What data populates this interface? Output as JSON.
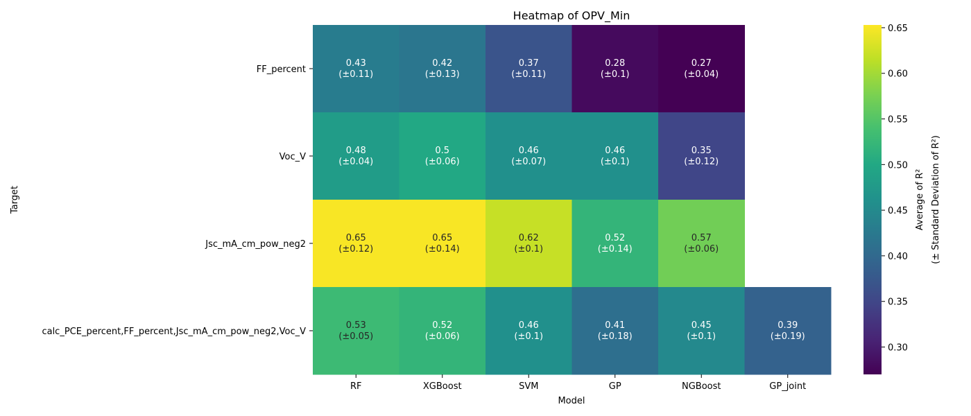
{
  "chart_data": {
    "type": "heatmap",
    "title": "Heatmap of OPV_Min",
    "xlabel": "Model",
    "ylabel": "Target",
    "x_categories": [
      "RF",
      "XGBoost",
      "SVM",
      "GP",
      "NGBoost",
      "GP_joint"
    ],
    "y_categories": [
      "FF_percent",
      "Voc_V",
      "Jsc_mA_cm_pow_neg2",
      "calc_PCE_percent,FF_percent,Jsc_mA_cm_pow_neg2,Voc_V"
    ],
    "cells": [
      [
        {
          "mean": "0.43",
          "std": "(±0.11)"
        },
        {
          "mean": "0.42",
          "std": "(±0.13)"
        },
        {
          "mean": "0.37",
          "std": "(±0.11)"
        },
        {
          "mean": "0.28",
          "std": "(±0.1)"
        },
        {
          "mean": "0.27",
          "std": "(±0.04)"
        },
        null
      ],
      [
        {
          "mean": "0.48",
          "std": "(±0.04)"
        },
        {
          "mean": "0.5",
          "std": "(±0.06)"
        },
        {
          "mean": "0.46",
          "std": "(±0.07)"
        },
        {
          "mean": "0.46",
          "std": "(±0.1)"
        },
        {
          "mean": "0.35",
          "std": "(±0.12)"
        },
        null
      ],
      [
        {
          "mean": "0.65",
          "std": "(±0.12)"
        },
        {
          "mean": "0.65",
          "std": "(±0.14)"
        },
        {
          "mean": "0.62",
          "std": "(±0.1)"
        },
        {
          "mean": "0.52",
          "std": "(±0.14)"
        },
        {
          "mean": "0.57",
          "std": "(±0.06)"
        },
        null
      ],
      [
        {
          "mean": "0.53",
          "std": "(±0.05)"
        },
        {
          "mean": "0.52",
          "std": "(±0.06)"
        },
        {
          "mean": "0.46",
          "std": "(±0.1)"
        },
        {
          "mean": "0.41",
          "std": "(±0.18)"
        },
        {
          "mean": "0.45",
          "std": "(±0.1)"
        },
        {
          "mean": "0.39",
          "std": "(±0.19)"
        }
      ]
    ],
    "colorbar": {
      "colormap": "viridis",
      "range": [
        0.27,
        0.653
      ],
      "ticks": [
        "0.30",
        "0.35",
        "0.40",
        "0.45",
        "0.50",
        "0.55",
        "0.60",
        "0.65"
      ],
      "label_line1": "Average of  R²",
      "label_line2": "(± Standard Deviation of  R²)"
    },
    "grid": false,
    "legend": "colorbar-right"
  }
}
